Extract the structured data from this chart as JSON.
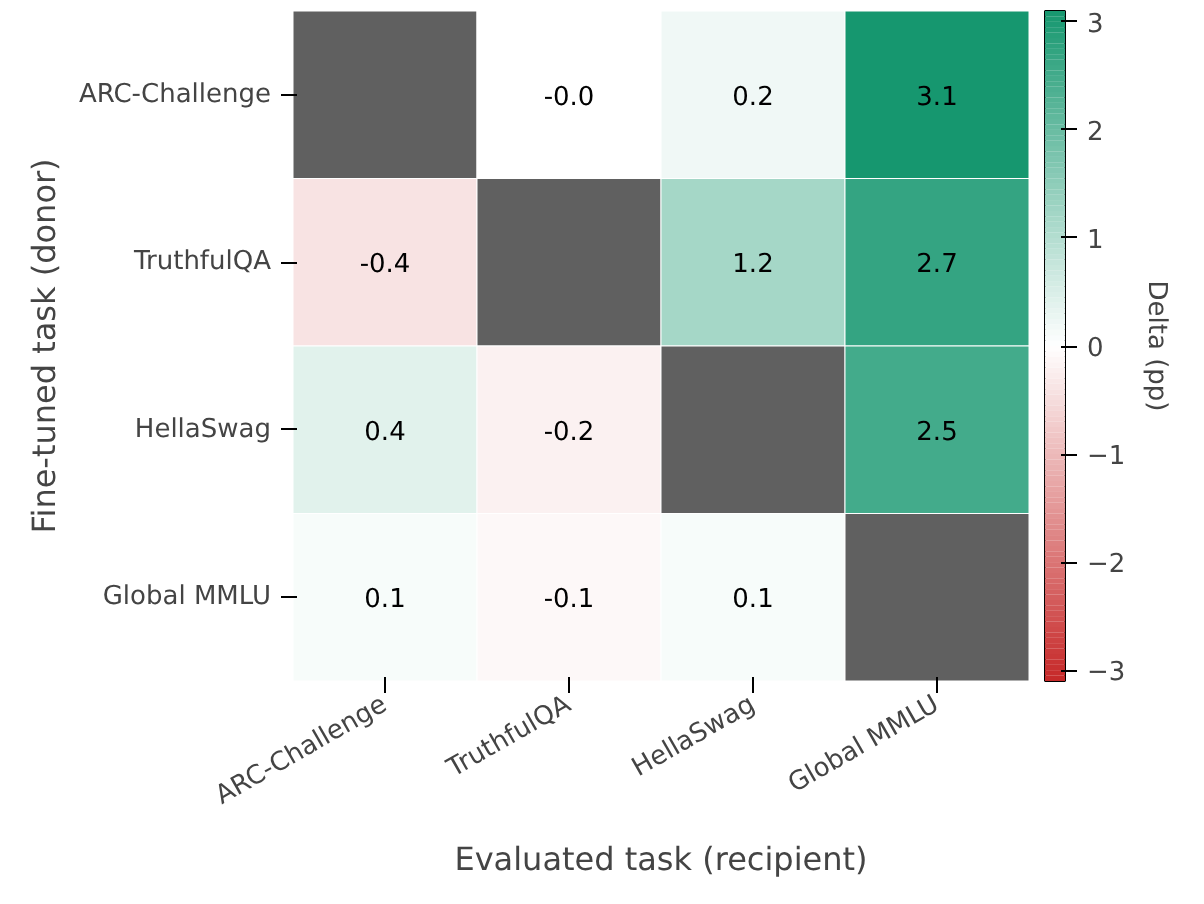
{
  "chart_data": {
    "type": "heatmap",
    "xlabel": "Evaluated task (recipient)",
    "ylabel": "Fine-tuned task (donor)",
    "clabel": "Delta (pp)",
    "categories": [
      "ARC-Challenge",
      "TruthfulQA",
      "HellaSwag",
      "Global MMLU"
    ],
    "y_categories": [
      "ARC-Challenge",
      "TruthfulQA",
      "HellaSwag",
      "Global MMLU"
    ],
    "cells": [
      [
        null,
        -0.0,
        0.2,
        3.1
      ],
      [
        -0.4,
        null,
        1.2,
        2.7
      ],
      [
        0.4,
        -0.2,
        null,
        2.5
      ],
      [
        0.1,
        -0.1,
        0.1,
        null
      ]
    ],
    "cell_labels": [
      [
        null,
        "-0.0",
        "0.2",
        "3.1"
      ],
      [
        "-0.4",
        null,
        "1.2",
        "2.7"
      ],
      [
        "0.4",
        "-0.2",
        null,
        "2.5"
      ],
      [
        "0.1",
        "-0.1",
        "0.1",
        null
      ]
    ],
    "colors": [
      "#c62828",
      "#ffffff",
      "#16976f"
    ],
    "clim": [
      -3.1,
      3.1
    ],
    "cticks": [
      -3,
      -2,
      -1,
      0,
      1,
      2,
      3
    ]
  }
}
